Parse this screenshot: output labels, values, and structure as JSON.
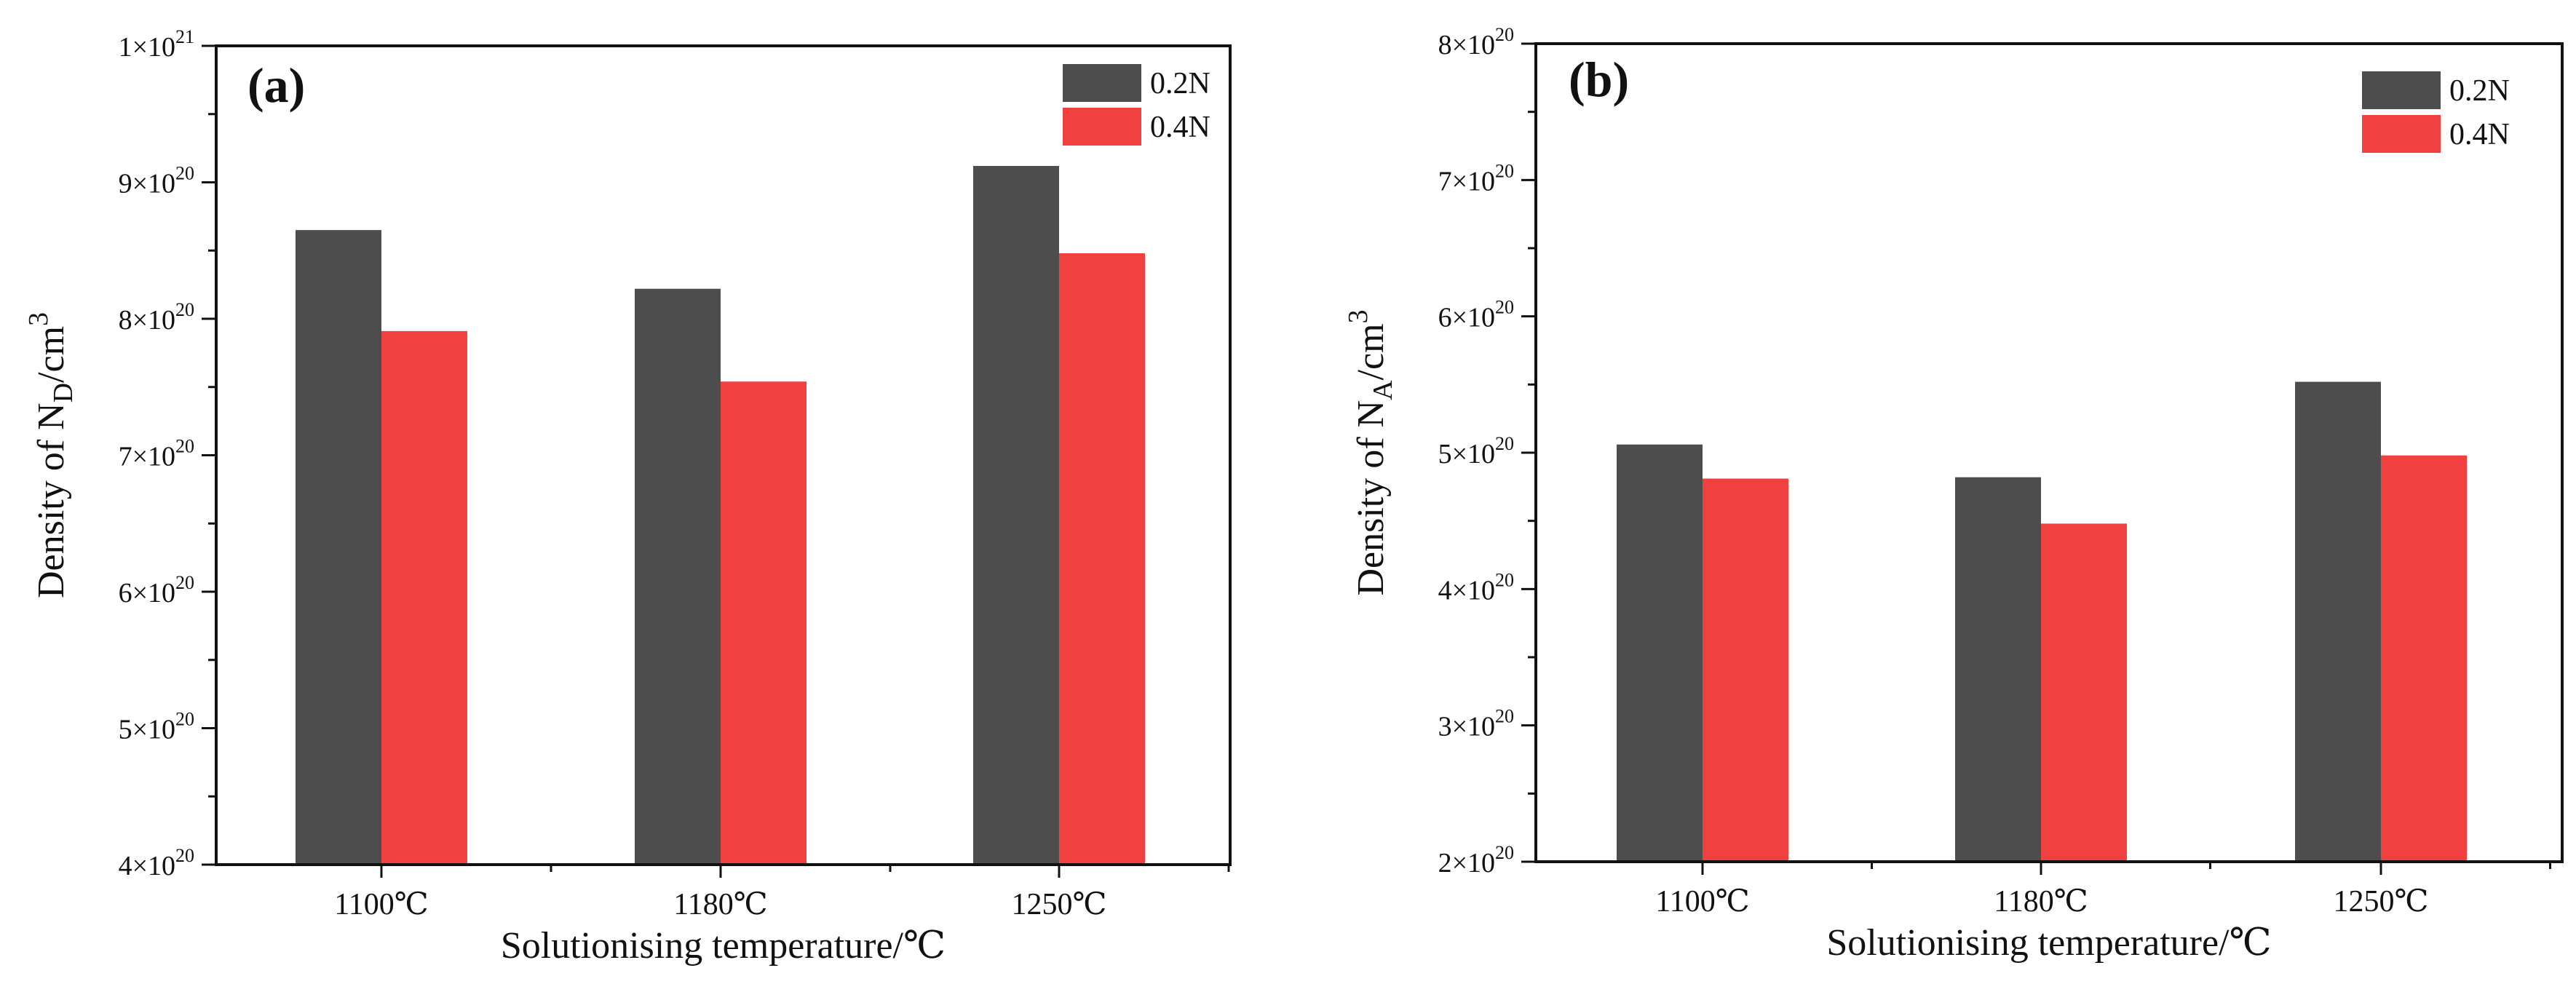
{
  "chart_data": [
    {
      "type": "bar",
      "panel_label": "(a)",
      "categories": [
        "1100℃",
        "1180℃",
        "1250℃"
      ],
      "series": [
        {
          "name": "0.2N",
          "color": "#4d4d4d",
          "values": [
            8.65,
            8.22,
            9.12
          ]
        },
        {
          "name": "0.4N",
          "color": "#f04040",
          "values": [
            7.91,
            7.54,
            8.48
          ]
        }
      ],
      "value_scale": "×10^20 cm^-3",
      "ylim": [
        4,
        10
      ],
      "yticks": [
        {
          "value": 4,
          "mant": "4×10",
          "exp": "20"
        },
        {
          "value": 5,
          "mant": "5×10",
          "exp": "20"
        },
        {
          "value": 6,
          "mant": "6×10",
          "exp": "20"
        },
        {
          "value": 7,
          "mant": "7×10",
          "exp": "20"
        },
        {
          "value": 8,
          "mant": "8×10",
          "exp": "20"
        },
        {
          "value": 9,
          "mant": "9×10",
          "exp": "20"
        },
        {
          "value": 10,
          "mant": "1×10",
          "exp": "21"
        }
      ],
      "xlabel": "Solutionising temperature/℃",
      "ylabel": {
        "main": "Density of N",
        "sub": "D",
        "unit": "/cm",
        "sup": "3"
      },
      "legend_position": "top-right"
    },
    {
      "type": "bar",
      "panel_label": "(b)",
      "categories": [
        "1100℃",
        "1180℃",
        "1250℃"
      ],
      "series": [
        {
          "name": "0.2N",
          "color": "#4d4d4d",
          "values": [
            5.06,
            4.82,
            5.52
          ]
        },
        {
          "name": "0.4N",
          "color": "#f04040",
          "values": [
            4.81,
            4.48,
            4.98
          ]
        }
      ],
      "value_scale": "×10^20 cm^-3",
      "ylim": [
        2,
        8
      ],
      "yticks": [
        {
          "value": 2,
          "mant": "2×10",
          "exp": "20"
        },
        {
          "value": 3,
          "mant": "3×10",
          "exp": "20"
        },
        {
          "value": 4,
          "mant": "4×10",
          "exp": "20"
        },
        {
          "value": 5,
          "mant": "5×10",
          "exp": "20"
        },
        {
          "value": 6,
          "mant": "6×10",
          "exp": "20"
        },
        {
          "value": 7,
          "mant": "7×10",
          "exp": "20"
        },
        {
          "value": 8,
          "mant": "8×10",
          "exp": "20"
        }
      ],
      "xlabel": "Solutionising temperature/℃",
      "ylabel": {
        "main": "Density of N",
        "sub": "A",
        "unit": "/cm",
        "sup": "3"
      },
      "legend_position": "top-right"
    }
  ]
}
